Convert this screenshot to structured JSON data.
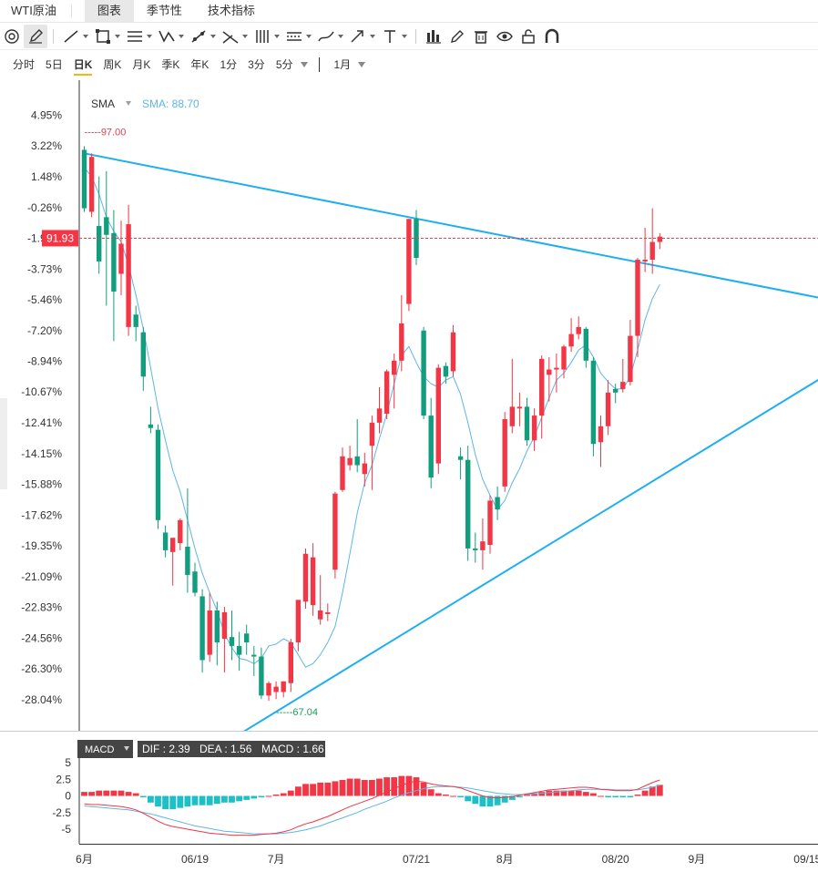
{
  "header": {
    "title": "WTI原油",
    "tabs": [
      {
        "label": "图表",
        "active": true
      },
      {
        "label": "季节性",
        "active": false
      },
      {
        "label": "技术指标",
        "active": false
      }
    ]
  },
  "toolbar": {
    "icons": [
      "settings-icon",
      "pencil-icon",
      "line-icon",
      "rectangle-icon",
      "parallel-lines-icon",
      "pattern-icon",
      "measure-icon",
      "fib-icon",
      "vertical-lines-icon",
      "horizontal-lines-icon",
      "brush-icon",
      "arrow-icon",
      "text-icon",
      "bars-icon",
      "edit-icon",
      "trash-icon",
      "eye-icon",
      "lock-icon",
      "magnet-icon"
    ]
  },
  "periods": {
    "items": [
      "分时",
      "5日",
      "日K",
      "周K",
      "月K",
      "季K",
      "年K",
      "1分",
      "3分",
      "5分"
    ],
    "active": "日K",
    "range": "1月"
  },
  "colors": {
    "up": "#f23645",
    "down": "#129e7e",
    "trendline": "#1eaef2",
    "sma": "#5eb5e6",
    "dif": "#f23645",
    "dea": "#5eb5e6",
    "hist_pos": "#f23645",
    "hist_neg": "#1ec0c8"
  },
  "chart_data": [
    {
      "type": "candlestick",
      "yaxis_ticks": [
        "4.95%",
        "3.22%",
        "1.48%",
        "-0.26%",
        "-1.99%",
        "-3.73%",
        "-5.46%",
        "-7.20%",
        "-8.94%",
        "-10.67%",
        "-12.41%",
        "-14.15%",
        "-15.88%",
        "-17.62%",
        "-19.35%",
        "-21.09%",
        "-22.83%",
        "-24.56%",
        "-26.30%",
        "-28.04%"
      ],
      "yaxis_tick_values": [
        4.95,
        3.22,
        1.48,
        -0.26,
        -1.99,
        -3.73,
        -5.46,
        -7.2,
        -8.94,
        -10.67,
        -12.41,
        -14.15,
        -15.88,
        -17.62,
        -19.35,
        -21.09,
        -22.83,
        -24.56,
        -26.3,
        -28.04
      ],
      "xaxis_labels": [
        "6月",
        "06/19",
        "7月",
        "07/21",
        "8月",
        "08/20",
        "9月",
        "09/15"
      ],
      "xaxis_label_bar_index": [
        0,
        15,
        26,
        45,
        57,
        72,
        83,
        98
      ],
      "bar_count": 110,
      "legend": {
        "name": "SMA",
        "value_label": "SMA: 88.70"
      },
      "current_price": "91.93",
      "current_price_pct": -1.99,
      "high_marker": {
        "label": "97.00",
        "pct": 3.0,
        "bar_index": 0
      },
      "low_marker": {
        "label": "67.04",
        "pct": -28.2,
        "bar_index": 26
      },
      "candles": [
        {
          "o": 3.0,
          "h": 3.2,
          "l": -0.5,
          "c": -0.3
        },
        {
          "o": -0.5,
          "h": 2.8,
          "l": -0.8,
          "c": 2.6
        },
        {
          "o": -1.3,
          "h": 1.5,
          "l": -4.0,
          "c": -3.3
        },
        {
          "o": -0.8,
          "h": 1.8,
          "l": -5.8,
          "c": -1.8
        },
        {
          "o": -1.7,
          "h": -0.4,
          "l": -7.8,
          "c": -5.0
        },
        {
          "o": -4.0,
          "h": -1.0,
          "l": -5.2,
          "c": -2.3
        },
        {
          "o": -7.0,
          "h": -0.1,
          "l": -7.5,
          "c": -1.2
        },
        {
          "o": -6.3,
          "h": -5.8,
          "l": -7.8,
          "c": -7.0
        },
        {
          "o": -7.3,
          "h": -7.0,
          "l": -10.6,
          "c": -9.8
        },
        {
          "o": -12.5,
          "h": -11.5,
          "l": -13.0,
          "c": -12.7
        },
        {
          "o": -12.8,
          "h": -12.5,
          "l": -18.4,
          "c": -17.9
        },
        {
          "o": -18.6,
          "h": -18.2,
          "l": -20.0,
          "c": -19.6
        },
        {
          "o": -19.7,
          "h": -18.9,
          "l": -21.6,
          "c": -18.9
        },
        {
          "o": -19.2,
          "h": -17.8,
          "l": -19.6,
          "c": -17.9
        },
        {
          "o": -19.4,
          "h": -16.1,
          "l": -22.0,
          "c": -21.0
        },
        {
          "o": -20.8,
          "h": -20.3,
          "l": -22.2,
          "c": -22.0
        },
        {
          "o": -22.2,
          "h": -21.8,
          "l": -26.5,
          "c": -25.8
        },
        {
          "o": -25.5,
          "h": -22.0,
          "l": -25.9,
          "c": -23.0
        },
        {
          "o": -23.0,
          "h": -22.5,
          "l": -26.1,
          "c": -24.8
        },
        {
          "o": -24.6,
          "h": -22.8,
          "l": -26.5,
          "c": -23.1
        },
        {
          "o": -24.5,
          "h": -23.0,
          "l": -25.8,
          "c": -25.0
        },
        {
          "o": -25.0,
          "h": -24.2,
          "l": -26.4,
          "c": -25.5
        },
        {
          "o": -24.3,
          "h": -23.8,
          "l": -25.5,
          "c": -24.8
        },
        {
          "o": -25.5,
          "h": -25.0,
          "l": -26.7,
          "c": -25.6
        },
        {
          "o": -25.6,
          "h": -25.1,
          "l": -28.0,
          "c": -27.8
        },
        {
          "o": -27.8,
          "h": -27.0,
          "l": -28.1,
          "c": -27.1
        },
        {
          "o": -27.6,
          "h": -27.0,
          "l": -28.0,
          "c": -27.3
        },
        {
          "o": -27.6,
          "h": -27.0,
          "l": -27.9,
          "c": -27.0
        },
        {
          "o": -27.1,
          "h": -24.6,
          "l": -27.6,
          "c": -24.8
        },
        {
          "o": -24.8,
          "h": -22.5,
          "l": -25.3,
          "c": -22.4
        },
        {
          "o": -22.5,
          "h": -19.5,
          "l": -22.9,
          "c": -19.8
        },
        {
          "o": -22.7,
          "h": -19.2,
          "l": -23.3,
          "c": -20.0
        },
        {
          "o": -23.5,
          "h": -21.0,
          "l": -23.8,
          "c": -23.0
        },
        {
          "o": -23.2,
          "h": -22.6,
          "l": -23.6,
          "c": -23.1
        },
        {
          "o": -20.7,
          "h": -16.3,
          "l": -21.2,
          "c": -16.4
        },
        {
          "o": -16.2,
          "h": -13.8,
          "l": -16.3,
          "c": -14.3
        },
        {
          "o": -14.8,
          "h": -13.7,
          "l": -15.1,
          "c": -14.4
        },
        {
          "o": -14.3,
          "h": -12.2,
          "l": -15.2,
          "c": -14.8
        },
        {
          "o": -15.3,
          "h": -14.1,
          "l": -16.0,
          "c": -14.7
        },
        {
          "o": -13.7,
          "h": -12.0,
          "l": -16.2,
          "c": -12.4
        },
        {
          "o": -12.4,
          "h": -10.4,
          "l": -13.0,
          "c": -11.6
        },
        {
          "o": -11.9,
          "h": -9.4,
          "l": -12.2,
          "c": -9.5
        },
        {
          "o": -9.7,
          "h": -8.5,
          "l": -11.6,
          "c": -8.9
        },
        {
          "o": -8.9,
          "h": -5.2,
          "l": -9.5,
          "c": -6.8
        },
        {
          "o": -5.7,
          "h": -1.0,
          "l": -6.1,
          "c": -0.9
        },
        {
          "o": -0.9,
          "h": -0.4,
          "l": -3.5,
          "c": -3.1
        },
        {
          "o": -7.2,
          "h": -7.0,
          "l": -12.2,
          "c": -12.0
        },
        {
          "o": -12.0,
          "h": -11.0,
          "l": -16.1,
          "c": -15.5
        },
        {
          "o": -14.7,
          "h": -9.1,
          "l": -15.3,
          "c": -9.3
        },
        {
          "o": -9.2,
          "h": -9.0,
          "l": -10.2,
          "c": -9.8
        },
        {
          "o": -9.5,
          "h": -6.9,
          "l": -9.8,
          "c": -7.3
        },
        {
          "o": -14.3,
          "h": -13.8,
          "l": -15.6,
          "c": -14.5
        },
        {
          "o": -14.5,
          "h": -13.7,
          "l": -20.2,
          "c": -19.5
        },
        {
          "o": -19.5,
          "h": -18.6,
          "l": -20.3,
          "c": -19.6
        },
        {
          "o": -19.6,
          "h": -17.8,
          "l": -20.7,
          "c": -19.1
        },
        {
          "o": -19.3,
          "h": -16.5,
          "l": -19.8,
          "c": -16.8
        },
        {
          "o": -16.6,
          "h": -16.0,
          "l": -17.9,
          "c": -17.3
        },
        {
          "o": -16.0,
          "h": -11.8,
          "l": -16.3,
          "c": -12.2
        },
        {
          "o": -12.6,
          "h": -8.8,
          "l": -13.0,
          "c": -11.5
        },
        {
          "o": -11.6,
          "h": -10.7,
          "l": -12.6,
          "c": -11.5
        },
        {
          "o": -11.5,
          "h": -11.0,
          "l": -13.7,
          "c": -13.4
        },
        {
          "o": -13.4,
          "h": -11.6,
          "l": -14.0,
          "c": -12.0
        },
        {
          "o": -12.0,
          "h": -8.6,
          "l": -13.3,
          "c": -8.8
        },
        {
          "o": -9.7,
          "h": -8.7,
          "l": -11.2,
          "c": -9.4
        },
        {
          "o": -9.4,
          "h": -8.5,
          "l": -10.7,
          "c": -9.3
        },
        {
          "o": -9.4,
          "h": -8.0,
          "l": -9.9,
          "c": -8.1
        },
        {
          "o": -8.1,
          "h": -6.5,
          "l": -8.4,
          "c": -7.4
        },
        {
          "o": -7.4,
          "h": -6.4,
          "l": -7.7,
          "c": -7.0
        },
        {
          "o": -7.1,
          "h": -7.0,
          "l": -9.3,
          "c": -8.9
        },
        {
          "o": -8.9,
          "h": -8.7,
          "l": -14.3,
          "c": -13.6
        },
        {
          "o": -13.5,
          "h": -12.0,
          "l": -14.9,
          "c": -12.6
        },
        {
          "o": -12.6,
          "h": -10.0,
          "l": -13.1,
          "c": -10.7
        },
        {
          "o": -10.5,
          "h": -10.2,
          "l": -11.3,
          "c": -10.7
        },
        {
          "o": -10.5,
          "h": -8.8,
          "l": -10.7,
          "c": -10.1
        },
        {
          "o": -10.1,
          "h": -6.6,
          "l": -10.3,
          "c": -7.5
        },
        {
          "o": -7.5,
          "h": -3.1,
          "l": -8.7,
          "c": -3.2
        },
        {
          "o": -3.3,
          "h": -1.4,
          "l": -3.9,
          "c": -3.2
        },
        {
          "o": -3.2,
          "h": -0.3,
          "l": -4.0,
          "c": -2.2
        },
        {
          "o": -2.2,
          "h": -1.7,
          "l": -2.6,
          "c": -1.9
        }
      ],
      "candle_bar_index": [
        0,
        1,
        2,
        3,
        4,
        5,
        6,
        7,
        8,
        9,
        10,
        11,
        12,
        13,
        14,
        15,
        16,
        17,
        18,
        19,
        20,
        21,
        22,
        23,
        24,
        25,
        26,
        27,
        28,
        29,
        30,
        31,
        32,
        33,
        34,
        35,
        36,
        37,
        38,
        39,
        40,
        41,
        42,
        43,
        44,
        45,
        46,
        47,
        48,
        49,
        50,
        51,
        52,
        53,
        54,
        55,
        56,
        57,
        58,
        59,
        60,
        61,
        62,
        63,
        64,
        65,
        66,
        67,
        68,
        69,
        70,
        71,
        72,
        73,
        74,
        75,
        76,
        77,
        78
      ],
      "sma": [
        2.0,
        1.5,
        0.5,
        -0.8,
        -1.6,
        -2.2,
        -3.5,
        -5.2,
        -7.1,
        -9.3,
        -11.6,
        -13.4,
        -15.1,
        -16.3,
        -17.9,
        -19.5,
        -20.9,
        -22.0,
        -23.0,
        -24.3,
        -25.1,
        -25.7,
        -25.8,
        -26.0,
        -25.7,
        -25.0,
        -24.9,
        -24.6,
        -24.8,
        -25.5,
        -26.2,
        -26.0,
        -25.5,
        -24.8,
        -23.9,
        -22.0,
        -19.8,
        -17.5,
        -15.8,
        -14.8,
        -13.3,
        -11.9,
        -10.2,
        -8.6,
        -8.1,
        -9.0,
        -9.8,
        -10.2,
        -10.4,
        -10.0,
        -9.8,
        -10.8,
        -12.4,
        -14.2,
        -15.6,
        -16.5,
        -17.3,
        -16.8,
        -15.8,
        -15.0,
        -14.0,
        -13.2,
        -12.1,
        -11.0,
        -10.0,
        -9.6,
        -9.0,
        -8.3,
        -8.0,
        -8.7,
        -9.6,
        -10.1,
        -10.5,
        -10.5,
        -9.8,
        -8.3,
        -6.6,
        -5.4,
        -4.6
      ],
      "trendlines": [
        {
          "from": {
            "bar": 0,
            "pct": 2.8
          },
          "to": {
            "bar": 110,
            "pct": -6.2
          }
        },
        {
          "from": {
            "bar": 19,
            "pct": -30.5
          },
          "to": {
            "bar": 110,
            "pct": -7.3
          }
        }
      ]
    },
    {
      "type": "macd",
      "legend": {
        "name": "MACD",
        "dif_label": "DIF : 2.39",
        "dea_label": "DEA : 1.56",
        "macd_label": "MACD : 1.66"
      },
      "yaxis_ticks": [
        "5",
        "2.5",
        "0",
        "-2.5",
        "-5"
      ],
      "yaxis_tick_values": [
        5,
        2.5,
        0,
        -2.5,
        -5
      ],
      "dif": [
        -1.2,
        -1.3,
        -1.3,
        -1.4,
        -1.5,
        -1.6,
        -1.8,
        -2.1,
        -2.6,
        -3.2,
        -3.8,
        -4.3,
        -4.6,
        -4.8,
        -5.0,
        -5.2,
        -5.4,
        -5.6,
        -5.7,
        -5.8,
        -5.9,
        -5.9,
        -5.9,
        -5.9,
        -5.8,
        -5.7,
        -5.6,
        -5.4,
        -5.1,
        -4.6,
        -4.2,
        -3.9,
        -3.5,
        -3.1,
        -2.6,
        -2.1,
        -1.6,
        -1.2,
        -0.8,
        -0.4,
        0.1,
        0.6,
        1.1,
        1.6,
        2.0,
        2.2,
        2.1,
        1.8,
        1.6,
        1.5,
        1.4,
        1.2,
        0.8,
        0.4,
        0.0,
        -0.2,
        -0.3,
        -0.2,
        -0.1,
        0.1,
        0.3,
        0.5,
        0.7,
        0.9,
        1.0,
        1.1,
        1.2,
        1.3,
        1.3,
        1.2,
        1.0,
        0.9,
        0.8,
        0.8,
        0.8,
        1.0,
        1.5,
        2.0,
        2.4
      ],
      "dea": [
        -1.5,
        -1.6,
        -1.7,
        -1.8,
        -1.9,
        -2.0,
        -2.1,
        -2.3,
        -2.5,
        -2.7,
        -3.0,
        -3.3,
        -3.6,
        -3.9,
        -4.2,
        -4.5,
        -4.7,
        -4.9,
        -5.1,
        -5.3,
        -5.4,
        -5.5,
        -5.6,
        -5.7,
        -5.7,
        -5.7,
        -5.7,
        -5.6,
        -5.5,
        -5.3,
        -5.1,
        -4.8,
        -4.5,
        -4.1,
        -3.7,
        -3.3,
        -2.9,
        -2.5,
        -2.0,
        -1.6,
        -1.2,
        -0.8,
        -0.3,
        0.1,
        0.5,
        0.8,
        1.1,
        1.3,
        1.4,
        1.4,
        1.4,
        1.3,
        1.2,
        1.0,
        0.8,
        0.6,
        0.4,
        0.3,
        0.2,
        0.2,
        0.2,
        0.3,
        0.4,
        0.5,
        0.6,
        0.7,
        0.8,
        0.9,
        1.0,
        1.0,
        1.0,
        1.0,
        0.9,
        0.9,
        0.9,
        0.9,
        1.1,
        1.3,
        1.6
      ],
      "hist": [
        0.6,
        0.6,
        0.8,
        0.8,
        0.8,
        0.8,
        0.6,
        0.4,
        -0.2,
        -1.0,
        -1.6,
        -2.0,
        -2.0,
        -1.8,
        -1.6,
        -1.4,
        -1.4,
        -1.4,
        -1.2,
        -1.0,
        -1.0,
        -0.8,
        -0.6,
        -0.4,
        -0.2,
        0.0,
        0.2,
        0.4,
        0.8,
        1.4,
        1.8,
        1.8,
        2.0,
        2.0,
        2.2,
        2.4,
        2.6,
        2.6,
        2.4,
        2.4,
        2.6,
        2.8,
        2.8,
        3.0,
        3.0,
        2.8,
        2.0,
        1.0,
        0.4,
        0.2,
        0.0,
        -0.2,
        -0.8,
        -1.2,
        -1.6,
        -1.6,
        -1.4,
        -1.0,
        -0.6,
        -0.2,
        0.2,
        0.4,
        0.6,
        0.8,
        0.8,
        0.8,
        0.8,
        0.8,
        0.6,
        0.4,
        0.0,
        -0.2,
        -0.2,
        -0.2,
        -0.2,
        0.2,
        0.8,
        1.4,
        1.66
      ]
    }
  ]
}
